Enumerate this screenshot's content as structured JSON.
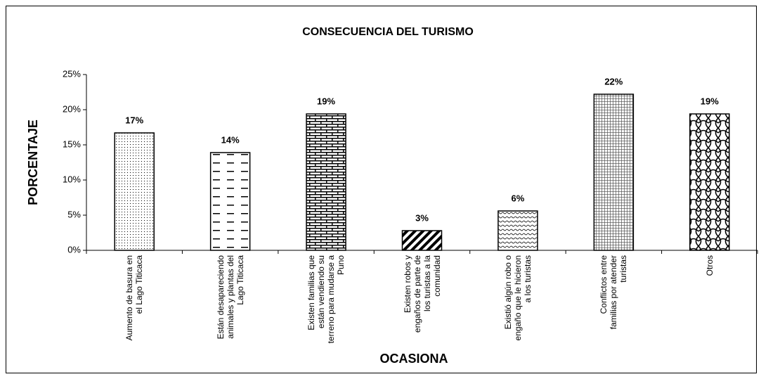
{
  "chart_data": {
    "type": "bar",
    "title": "CONSECUENCIA DEL TURISMO",
    "x_label": "OCASIONA",
    "y_label": "PORCENTAJE",
    "categories": [
      "Aumento de basura en el Lago Titicaca",
      "Están desapareciendo animales y plantas del Lago Titicaca",
      "Existen familias que están vendiendo su terreno para mudarse a Puno",
      "Existen robos y engaños de parte de los turistas a la comunidad",
      "Existió algún robo o engaño que le hicieron a los turistas",
      "Conflictos entre familias por atender turistas",
      "Otros"
    ],
    "values": [
      16.7,
      13.9,
      19.4,
      2.8,
      5.6,
      22.2,
      19.4
    ],
    "value_labels": [
      "17%",
      "14%",
      "19%",
      "3%",
      "6%",
      "22%",
      "19%"
    ],
    "color": "#000000",
    "ylim": [
      0,
      25
    ],
    "yticks": [
      {
        "value": 0,
        "label": "0%"
      },
      {
        "value": 5,
        "label": "5%"
      },
      {
        "value": 10,
        "label": "10%"
      },
      {
        "value": 15,
        "label": "15%"
      },
      {
        "value": 20,
        "label": "20%"
      },
      {
        "value": 25,
        "label": "25%"
      }
    ],
    "grid": false
  }
}
